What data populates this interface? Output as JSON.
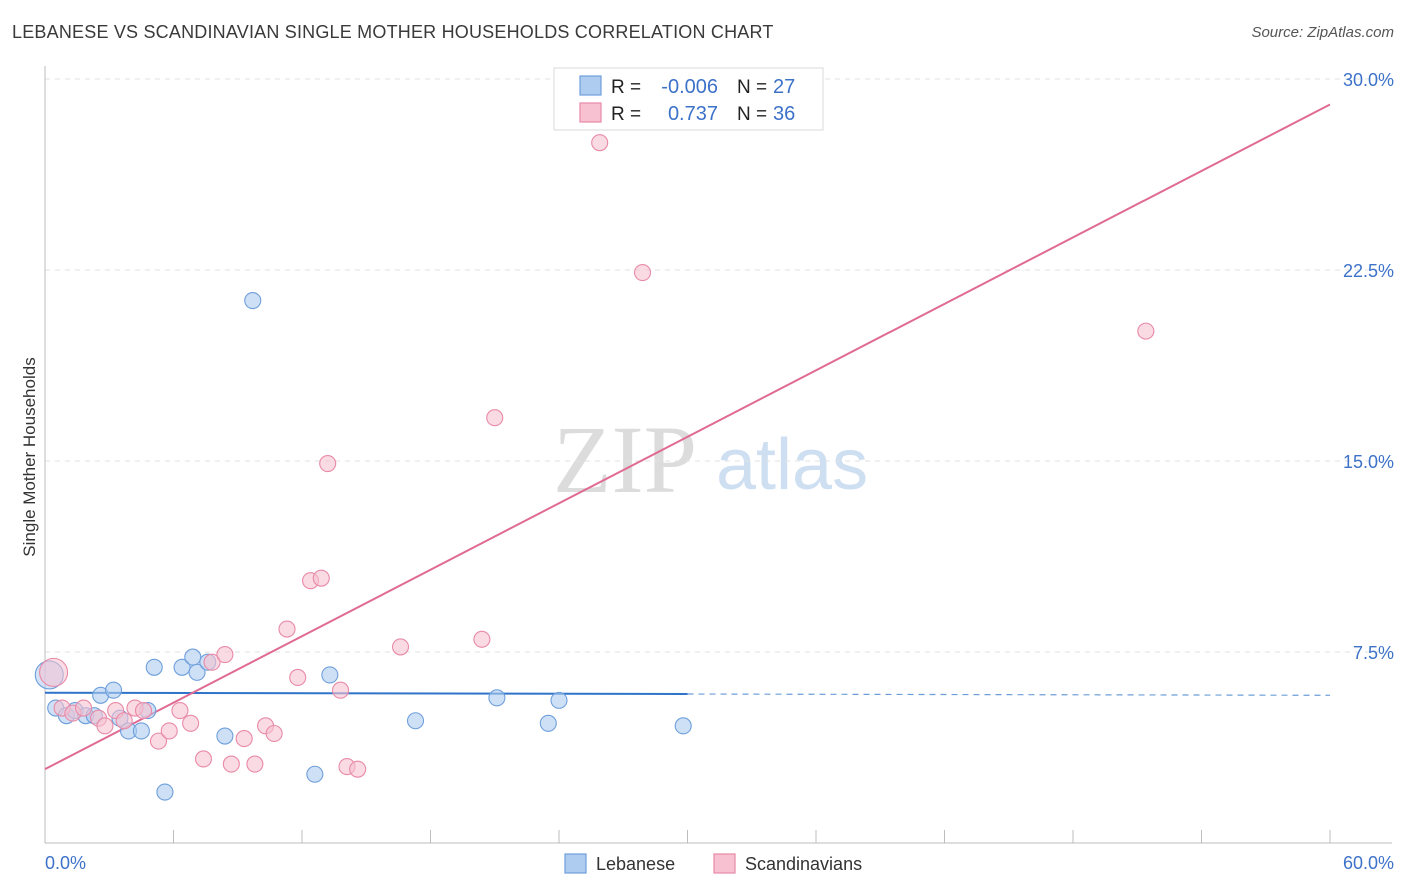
{
  "title": "LEBANESE VS SCANDINAVIAN SINGLE MOTHER HOUSEHOLDS CORRELATION CHART",
  "source": "Source: ZipAtlas.com",
  "watermark": {
    "zip": "ZIP",
    "atlas": "atlas"
  },
  "colors": {
    "blue_fill": "#aecbf0",
    "blue_stroke": "#6e9fdb",
    "blue_line": "#2f74c8",
    "pink_fill": "#f7c1d1",
    "pink_stroke": "#e88aa8",
    "pink_line": "#e06a93",
    "axis_label": "#3d72c9"
  },
  "legend": {
    "rows": [
      {
        "r_label": "R =",
        "r_value": "-0.006",
        "n_label": "N =",
        "n_value": "27"
      },
      {
        "r_label": "R =",
        "r_value": "0.737",
        "n_label": "N =",
        "n_value": "36"
      }
    ]
  },
  "bottom_legend": {
    "series1": "Lebanese",
    "series2": "Scandinavians"
  },
  "chart_data": {
    "type": "scatter",
    "title": "LEBANESE VS SCANDINAVIAN SINGLE MOTHER HOUSEHOLDS CORRELATION CHART",
    "xlabel": "",
    "ylabel": "Single Mother Households",
    "xlim": [
      0,
      60
    ],
    "ylim": [
      0,
      31.5
    ],
    "x_tick_labels": [
      "0.0%",
      "60.0%"
    ],
    "y_ticks": [
      7.5,
      15.0,
      22.5,
      30.0
    ],
    "y_tick_labels": [
      "7.5%",
      "15.0%",
      "22.5%",
      "30.0%"
    ],
    "series": [
      {
        "name": "Lebanese",
        "r": -0.006,
        "n": 27,
        "trend": {
          "x0": 0,
          "y0": 5.9,
          "x1": 30,
          "y1": 5.85,
          "dash_to_x": 60,
          "dash_y1": 5.8
        },
        "points": [
          [
            0.2,
            6.6
          ],
          [
            0.5,
            5.3
          ],
          [
            1.0,
            5.0
          ],
          [
            1.4,
            5.2
          ],
          [
            1.9,
            5.0
          ],
          [
            2.3,
            5.0
          ],
          [
            2.6,
            5.8
          ],
          [
            3.2,
            6.0
          ],
          [
            3.5,
            4.9
          ],
          [
            3.9,
            4.4
          ],
          [
            4.5,
            4.4
          ],
          [
            4.8,
            5.2
          ],
          [
            5.1,
            6.9
          ],
          [
            5.6,
            2.0
          ],
          [
            6.4,
            6.9
          ],
          [
            6.9,
            7.3
          ],
          [
            7.1,
            6.7
          ],
          [
            7.6,
            7.1
          ],
          [
            8.4,
            4.2
          ],
          [
            9.7,
            21.3
          ],
          [
            12.6,
            2.7
          ],
          [
            13.3,
            6.6
          ],
          [
            17.3,
            4.8
          ],
          [
            21.1,
            5.7
          ],
          [
            23.5,
            4.7
          ],
          [
            24.0,
            5.6
          ],
          [
            29.8,
            4.6
          ]
        ]
      },
      {
        "name": "Scandinavians",
        "r": 0.737,
        "n": 36,
        "trend": {
          "x0": 0,
          "y0": 2.9,
          "x1": 60,
          "y1": 29.0
        },
        "points": [
          [
            0.4,
            6.7
          ],
          [
            0.8,
            5.3
          ],
          [
            1.3,
            5.1
          ],
          [
            1.8,
            5.3
          ],
          [
            2.5,
            4.9
          ],
          [
            2.8,
            4.6
          ],
          [
            3.3,
            5.2
          ],
          [
            3.7,
            4.8
          ],
          [
            4.2,
            5.3
          ],
          [
            4.6,
            5.2
          ],
          [
            5.3,
            4.0
          ],
          [
            5.8,
            4.4
          ],
          [
            6.3,
            5.2
          ],
          [
            6.8,
            4.7
          ],
          [
            7.4,
            3.3
          ],
          [
            7.8,
            7.1
          ],
          [
            8.4,
            7.4
          ],
          [
            8.7,
            3.1
          ],
          [
            9.3,
            4.1
          ],
          [
            9.8,
            3.1
          ],
          [
            10.3,
            4.6
          ],
          [
            10.7,
            4.3
          ],
          [
            11.3,
            8.4
          ],
          [
            11.8,
            6.5
          ],
          [
            12.4,
            10.3
          ],
          [
            12.9,
            10.4
          ],
          [
            13.2,
            14.9
          ],
          [
            13.8,
            6.0
          ],
          [
            14.1,
            3.0
          ],
          [
            14.6,
            2.9
          ],
          [
            16.6,
            7.7
          ],
          [
            20.4,
            8.0
          ],
          [
            21.0,
            16.7
          ],
          [
            25.9,
            27.5
          ],
          [
            27.9,
            22.4
          ],
          [
            51.4,
            20.1
          ]
        ]
      }
    ]
  }
}
